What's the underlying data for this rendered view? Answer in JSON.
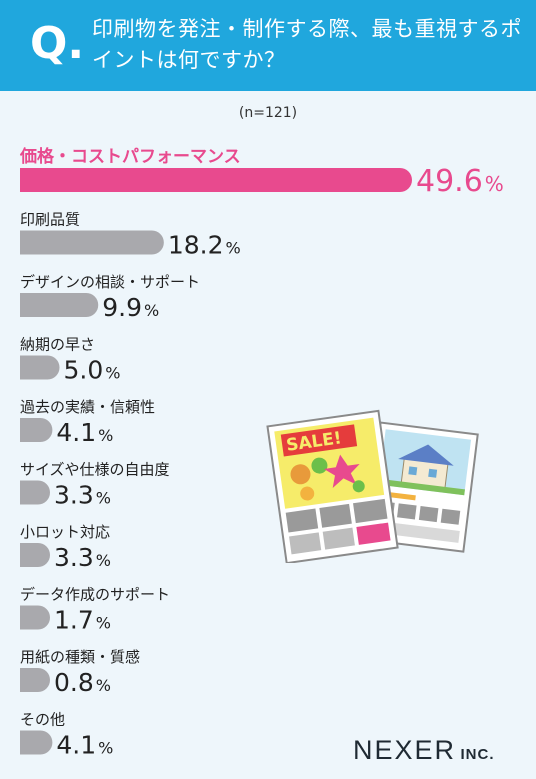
{
  "header": {
    "q_mark": "Q.",
    "question": "印刷物を発注・制作する際、最も重視するポイントは何ですか？"
  },
  "sample_size": "(n=121)",
  "logo": {
    "main": "NEXER",
    "sub": "INC."
  },
  "illustration": {
    "sale_label": "SALE!"
  },
  "colors": {
    "highlight": "#e84a8e",
    "bar": "#a9a9ad",
    "header": "#20a7dd"
  },
  "chart_data": {
    "type": "bar",
    "orientation": "horizontal",
    "unit": "%",
    "xlim": [
      0,
      49.6
    ],
    "categories": [
      "価格・コストパフォーマンス",
      "印刷品質",
      "デザインの相談・サポート",
      "納期の早さ",
      "過去の実績・信頼性",
      "サイズや仕様の自由度",
      "小ロット対応",
      "データ作成のサポート",
      "用紙の種類・質感",
      "その他"
    ],
    "values": [
      49.6,
      18.2,
      9.9,
      5.0,
      4.1,
      3.3,
      3.3,
      1.7,
      0.8,
      4.1
    ],
    "value_labels": [
      "49.6",
      "18.2",
      "9.9",
      "5.0",
      "4.1",
      "3.3",
      "3.3",
      "1.7",
      "0.8",
      "4.1"
    ],
    "highlight_index": 0
  }
}
